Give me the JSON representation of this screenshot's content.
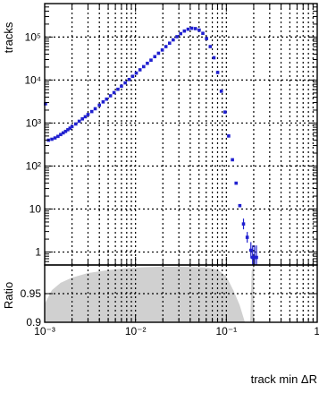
{
  "chart_data": [
    {
      "type": "scatter",
      "ylabel": "tracks",
      "xlabel": "",
      "x_scale": "log",
      "y_scale": "log",
      "xlim": [
        0.001,
        1
      ],
      "ylim": [
        0.5,
        600000
      ],
      "grid": true,
      "y_ticks": [
        {
          "value": 1,
          "label": "1"
        },
        {
          "value": 10,
          "label": "10"
        },
        {
          "value": 100,
          "label": "10²"
        },
        {
          "value": 1000,
          "label": "10³"
        },
        {
          "value": 10000,
          "label": "10⁴"
        },
        {
          "value": 100000,
          "label": "10⁵"
        }
      ],
      "series": [
        {
          "color": "#2020d0",
          "points": [
            [
              0.00102,
              2800
            ],
            [
              0.0011,
              400
            ],
            [
              0.0012,
              420
            ],
            [
              0.0013,
              450
            ],
            [
              0.0014,
              490
            ],
            [
              0.0015,
              540
            ],
            [
              0.0016,
              590
            ],
            [
              0.0017,
              640
            ],
            [
              0.0018,
              700
            ],
            [
              0.0019,
              760
            ],
            [
              0.002,
              830
            ],
            [
              0.0022,
              950
            ],
            [
              0.0024,
              1100
            ],
            [
              0.0026,
              1250
            ],
            [
              0.0028,
              1400
            ],
            [
              0.003,
              1580
            ],
            [
              0.0033,
              1850
            ],
            [
              0.0036,
              2150
            ],
            [
              0.004,
              2600
            ],
            [
              0.0044,
              3100
            ],
            [
              0.0048,
              3600
            ],
            [
              0.0053,
              4300
            ],
            [
              0.0058,
              5100
            ],
            [
              0.0064,
              6100
            ],
            [
              0.007,
              7200
            ],
            [
              0.0077,
              8600
            ],
            [
              0.0085,
              10300
            ],
            [
              0.0093,
              12200
            ],
            [
              0.0102,
              14500
            ],
            [
              0.0112,
              17300
            ],
            [
              0.0123,
              20500
            ],
            [
              0.0135,
              24500
            ],
            [
              0.0148,
              29000
            ],
            [
              0.0163,
              35000
            ],
            [
              0.0179,
              42000
            ],
            [
              0.0197,
              50000
            ],
            [
              0.0216,
              60000
            ],
            [
              0.0237,
              72000
            ],
            [
              0.026,
              86000
            ],
            [
              0.0286,
              102000
            ],
            [
              0.0314,
              120000
            ],
            [
              0.0345,
              138000
            ],
            [
              0.0379,
              152000
            ],
            [
              0.0416,
              160000
            ],
            [
              0.0457,
              157000
            ],
            [
              0.0502,
              145000
            ],
            [
              0.0551,
              122000
            ],
            [
              0.0605,
              92000
            ],
            [
              0.0665,
              60000
            ],
            [
              0.073,
              33000
            ],
            [
              0.0802,
              15000
            ],
            [
              0.088,
              5500
            ],
            [
              0.0967,
              1800
            ],
            [
              0.106,
              500
            ],
            [
              0.1166,
              140
            ],
            [
              0.128,
              40
            ],
            [
              0.1406,
              12
            ],
            [
              0.1544,
              4.5
            ],
            [
              0.1696,
              2.2
            ],
            [
              0.1862,
              1.1
            ],
            [
              0.1945,
              0.75
            ],
            [
              0.2045,
              0.75
            ],
            [
              0.2145,
              0.75
            ]
          ]
        }
      ]
    },
    {
      "type": "area",
      "ylabel": "Ratio",
      "xlabel": "track min  ΔR",
      "x_scale": "log",
      "xlim": [
        0.001,
        1
      ],
      "ylim": [
        0.9,
        1
      ],
      "grid": true,
      "x_ticks": [
        {
          "value": 0.001,
          "label": "10⁻³"
        },
        {
          "value": 0.01,
          "label": "10⁻²"
        },
        {
          "value": 0.1,
          "label": "10⁻¹"
        },
        {
          "value": 1,
          "label": "1"
        }
      ],
      "y_ticks": [
        {
          "value": 0.9,
          "label": "0.9"
        },
        {
          "value": 0.95,
          "label": "0.95"
        }
      ],
      "band": {
        "color": "#d0d0d0",
        "points": [
          [
            0.001,
            0.932
          ],
          [
            0.0012,
            0.956
          ],
          [
            0.0015,
            0.969
          ],
          [
            0.002,
            0.978
          ],
          [
            0.003,
            0.986
          ],
          [
            0.005,
            0.991
          ],
          [
            0.008,
            0.9945
          ],
          [
            0.012,
            0.996
          ],
          [
            0.02,
            0.997
          ],
          [
            0.03,
            0.9968
          ],
          [
            0.045,
            0.9962
          ],
          [
            0.06,
            0.9955
          ],
          [
            0.08,
            0.992
          ],
          [
            0.1,
            0.98
          ],
          [
            0.12,
            0.955
          ],
          [
            0.14,
            0.93
          ],
          [
            0.16,
            0.9
          ],
          [
            0.183,
            0.9
          ],
          [
            0.19,
            0.99
          ],
          [
            0.2,
            1.0
          ]
        ]
      }
    }
  ]
}
